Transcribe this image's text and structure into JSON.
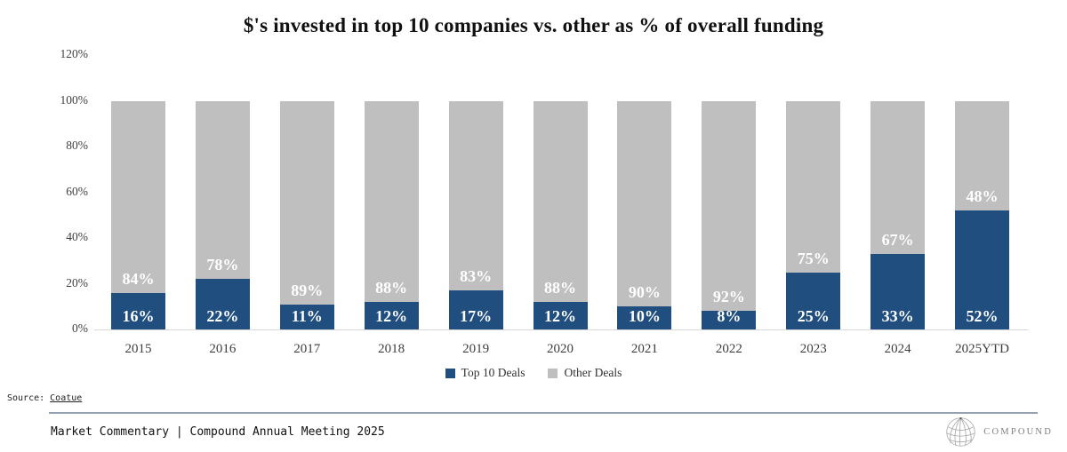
{
  "chart_data": {
    "type": "bar",
    "stacked": true,
    "title": "$'s invested in top 10 companies vs. other as % of overall funding",
    "categories": [
      "2015",
      "2016",
      "2017",
      "2018",
      "2019",
      "2020",
      "2021",
      "2022",
      "2023",
      "2024",
      "2025YTD"
    ],
    "series": [
      {
        "name": "Top 10 Deals",
        "color": "#1F4E7F",
        "values": [
          16,
          22,
          11,
          12,
          17,
          12,
          10,
          8,
          25,
          33,
          52
        ]
      },
      {
        "name": "Other Deals",
        "color": "#BFBFBF",
        "values": [
          84,
          78,
          89,
          88,
          83,
          88,
          90,
          92,
          75,
          67,
          48
        ]
      }
    ],
    "value_suffix": "%",
    "data_label_color": "#FFFFFF",
    "y_ticks": [
      0,
      20,
      40,
      60,
      80,
      100,
      120
    ],
    "y_tick_suffix": "%",
    "ylim": [
      0,
      120
    ],
    "grid": false,
    "legend_position": "bottom"
  },
  "source": {
    "label": "Source:",
    "link_text": "Coatue"
  },
  "footer": {
    "text": "Market Commentary | Compound Annual Meeting 2025",
    "logo_text": "COMPOUND"
  },
  "colors": {
    "top10": "#1F4E7F",
    "other": "#BFBFBF",
    "divider": "#97A1AF",
    "axis_line": "#D9D9D9"
  }
}
